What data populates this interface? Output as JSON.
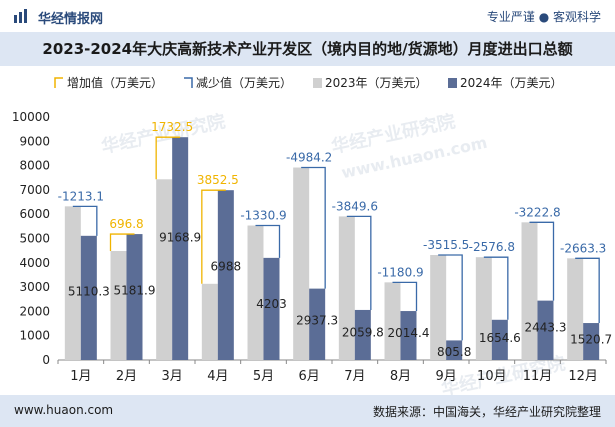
{
  "header": {
    "brand": "华经情报网",
    "slogan": "专业严谨 ● 客观科学"
  },
  "title": "2023-2024年大庆高新技术产业开发区（境内目的地/货源地）月度进出口总额",
  "footer": {
    "url": "www.huaon.com",
    "source": "数据来源：中国海关，华经产业研究院整理"
  },
  "watermark": {
    "text": "华经产业研究院",
    "url": "www.huaon.com"
  },
  "colors": {
    "bar_2023": "#d0d0d0",
    "bar_2024": "#5b6d96",
    "increase": "#f0b400",
    "decrease": "#3a6aa8",
    "title_bg": "#dde6f3"
  },
  "chart_data": {
    "type": "bar",
    "categories": [
      "1月",
      "2月",
      "3月",
      "4月",
      "5月",
      "6月",
      "7月",
      "8月",
      "9月",
      "10月",
      "11月",
      "12月"
    ],
    "series": [
      {
        "name": "2023年（万美元）",
        "values": [
          6323.4,
          4485.1,
          7436.4,
          3135.5,
          5533.9,
          7921.5,
          5909.4,
          3195.3,
          4321.3,
          4231.2,
          5666.1,
          4184.0
        ]
      },
      {
        "name": "2024年（万美元）",
        "values": [
          5110.3,
          5181.9,
          9168.9,
          6988,
          4203,
          2937.3,
          2059.8,
          2014.4,
          805.8,
          1654.6,
          2443.3,
          1520.7
        ]
      }
    ],
    "changes": [
      {
        "type": "decrease",
        "label": "-1213.1"
      },
      {
        "type": "increase",
        "label": "696.8"
      },
      {
        "type": "increase",
        "label": "1732.5"
      },
      {
        "type": "increase",
        "label": "3852.5"
      },
      {
        "type": "decrease",
        "label": "-1330.9"
      },
      {
        "type": "decrease",
        "label": "-4984.2"
      },
      {
        "type": "decrease",
        "label": "-3849.6"
      },
      {
        "type": "decrease",
        "label": "-1180.9"
      },
      {
        "type": "decrease",
        "label": "-3515.5"
      },
      {
        "type": "decrease",
        "label": "-2576.8"
      },
      {
        "type": "decrease",
        "label": "-3222.8"
      },
      {
        "type": "decrease",
        "label": "-2663.3"
      }
    ],
    "legend": [
      "增加值（万美元）",
      "减少值（万美元）",
      "2023年（万美元）",
      "2024年（万美元）"
    ],
    "legend_position": "top-left",
    "ylim": [
      0,
      10000
    ],
    "yticks": [
      0,
      1000,
      2000,
      3000,
      4000,
      5000,
      6000,
      7000,
      8000,
      9000,
      10000
    ],
    "grid": false
  }
}
